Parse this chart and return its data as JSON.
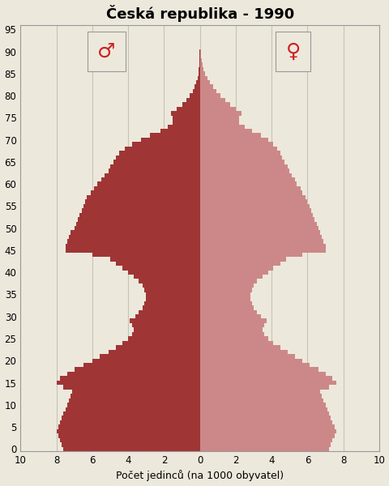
{
  "title": "Česká republika - 1990",
  "xlabel": "Počet jedinců (na 1000 obyvatel)",
  "background_color": "#ede8dc",
  "male_color": "#a03535",
  "female_color": "#cc8888",
  "xlim": 10,
  "ylim_max": 96,
  "yticks": [
    0,
    5,
    10,
    15,
    20,
    25,
    30,
    35,
    40,
    45,
    50,
    55,
    60,
    65,
    70,
    75,
    80,
    85,
    90,
    95
  ],
  "xticks": [
    -10,
    -8,
    -6,
    -4,
    -2,
    0,
    2,
    4,
    6,
    8,
    10
  ],
  "xticklabels": [
    "10",
    "8",
    "6",
    "4",
    "2",
    "0",
    "2",
    "4",
    "6",
    "8",
    "10"
  ],
  "male": [
    7.6,
    7.7,
    7.8,
    7.9,
    8.0,
    7.9,
    7.8,
    7.7,
    7.6,
    7.5,
    7.4,
    7.3,
    7.2,
    7.1,
    7.6,
    8.0,
    7.8,
    7.4,
    7.0,
    6.5,
    6.0,
    5.6,
    5.1,
    4.7,
    4.3,
    4.0,
    3.8,
    3.7,
    3.8,
    3.9,
    3.6,
    3.4,
    3.2,
    3.1,
    3.0,
    3.0,
    3.1,
    3.2,
    3.4,
    3.7,
    4.0,
    4.3,
    4.7,
    5.0,
    6.0,
    7.5,
    7.5,
    7.4,
    7.3,
    7.2,
    7.0,
    6.9,
    6.8,
    6.7,
    6.6,
    6.5,
    6.4,
    6.3,
    6.1,
    5.9,
    5.7,
    5.5,
    5.3,
    5.1,
    5.0,
    4.8,
    4.7,
    4.5,
    4.2,
    3.8,
    3.3,
    2.8,
    2.2,
    1.8,
    1.5,
    1.5,
    1.6,
    1.3,
    1.0,
    0.75,
    0.55,
    0.4,
    0.28,
    0.19,
    0.13,
    0.09,
    0.06,
    0.04,
    0.025,
    0.015,
    0.009,
    0.005,
    0.003,
    0.002,
    0.001,
    0.001
  ],
  "female": [
    7.2,
    7.3,
    7.4,
    7.5,
    7.6,
    7.5,
    7.4,
    7.3,
    7.2,
    7.1,
    7.0,
    6.9,
    6.8,
    6.7,
    7.2,
    7.6,
    7.4,
    7.0,
    6.6,
    6.1,
    5.7,
    5.3,
    4.9,
    4.5,
    4.1,
    3.8,
    3.6,
    3.5,
    3.6,
    3.7,
    3.4,
    3.2,
    3.0,
    2.9,
    2.8,
    2.8,
    2.9,
    3.0,
    3.2,
    3.5,
    3.8,
    4.1,
    4.5,
    4.8,
    5.7,
    7.0,
    7.0,
    6.9,
    6.8,
    6.7,
    6.6,
    6.5,
    6.4,
    6.3,
    6.2,
    6.1,
    6.0,
    5.9,
    5.7,
    5.6,
    5.4,
    5.3,
    5.1,
    5.0,
    4.9,
    4.7,
    4.6,
    4.5,
    4.3,
    4.1,
    3.8,
    3.4,
    2.9,
    2.5,
    2.2,
    2.2,
    2.3,
    2.0,
    1.7,
    1.4,
    1.15,
    0.92,
    0.72,
    0.54,
    0.4,
    0.29,
    0.21,
    0.15,
    0.1,
    0.07,
    0.045,
    0.028,
    0.017,
    0.01,
    0.006,
    0.003
  ],
  "male_symbol_x": -5.2,
  "female_symbol_x": 5.2,
  "symbol_y": 90,
  "symbol_fontsize": 18,
  "title_fontsize": 13,
  "xlabel_fontsize": 9,
  "tick_fontsize": 8.5,
  "grid_color": "#c8c4b4",
  "spine_color": "#999999"
}
